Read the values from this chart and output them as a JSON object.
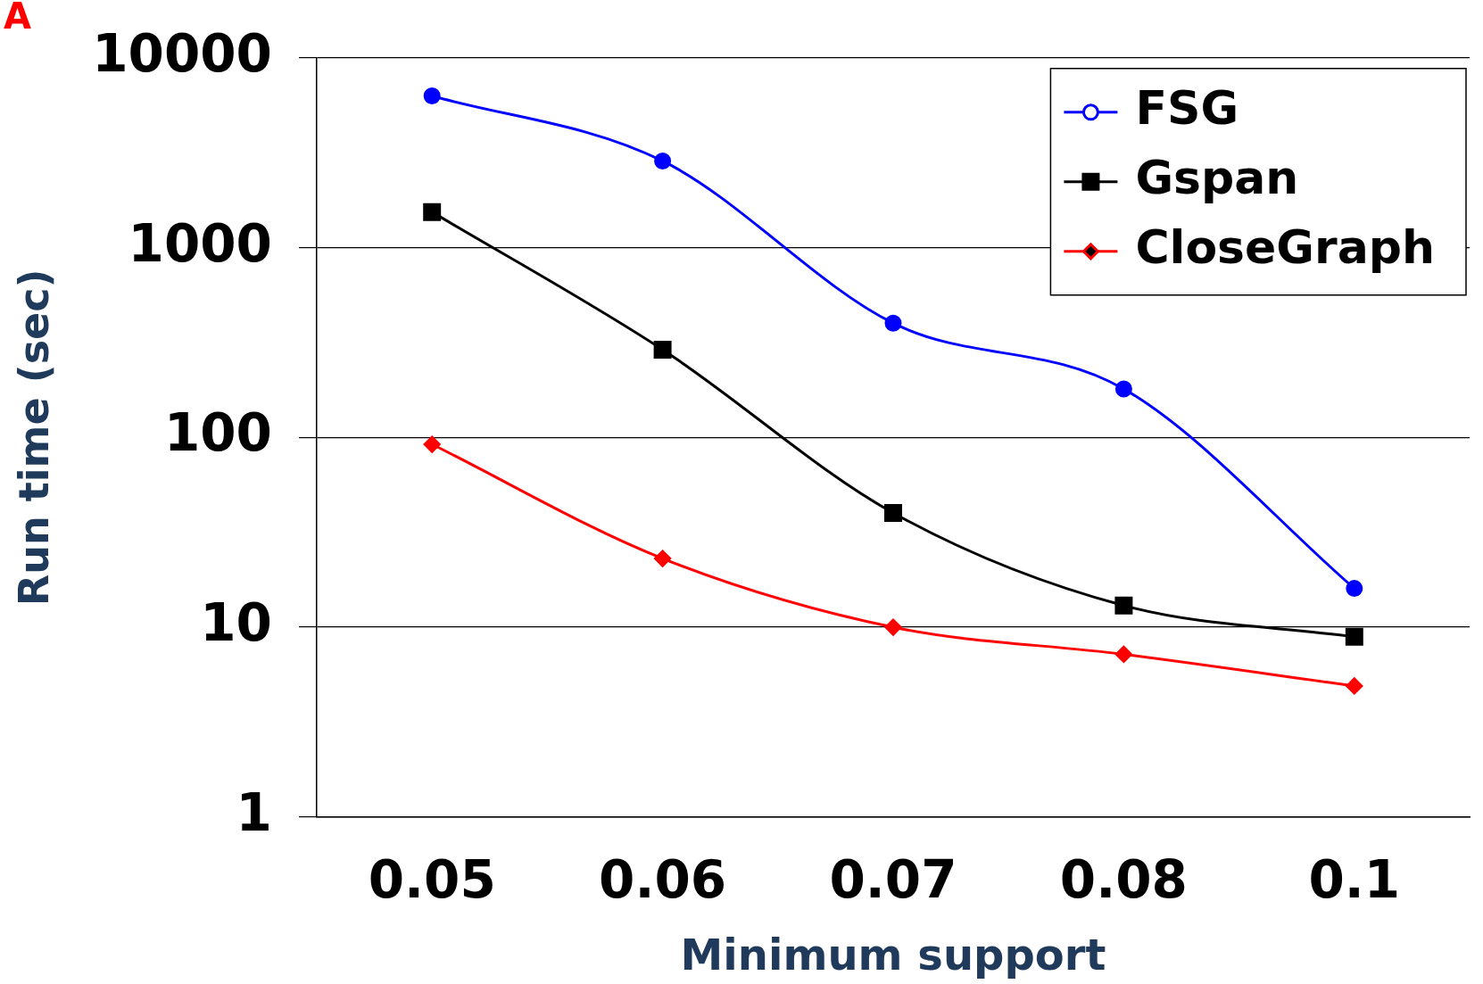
{
  "chart_data": {
    "type": "line",
    "xlabel": "Minimum support",
    "ylabel": "Run time (sec)",
    "annotations": [
      "A"
    ],
    "categories": [
      "0.05",
      "0.06",
      "0.07",
      "0.08",
      "0.1"
    ],
    "series": [
      {
        "name": "FSG",
        "color": "#0000ff",
        "marker": "circle",
        "values": [
          6300,
          2860,
          400,
          180,
          16
        ]
      },
      {
        "name": "Gspan",
        "color": "#000000",
        "marker": "square",
        "values": [
          1540,
          290,
          40,
          13,
          8.9
        ]
      },
      {
        "name": "CloseGraph",
        "color": "#ff0000",
        "marker": "diamond",
        "values": [
          92,
          23,
          10,
          7.2,
          4.9
        ]
      }
    ],
    "log": "y",
    "ylim": [
      1,
      10000
    ],
    "yticks": [
      1,
      10,
      100,
      1000,
      10000
    ],
    "grid": "y",
    "legend": "top right",
    "line_style": "solid"
  }
}
